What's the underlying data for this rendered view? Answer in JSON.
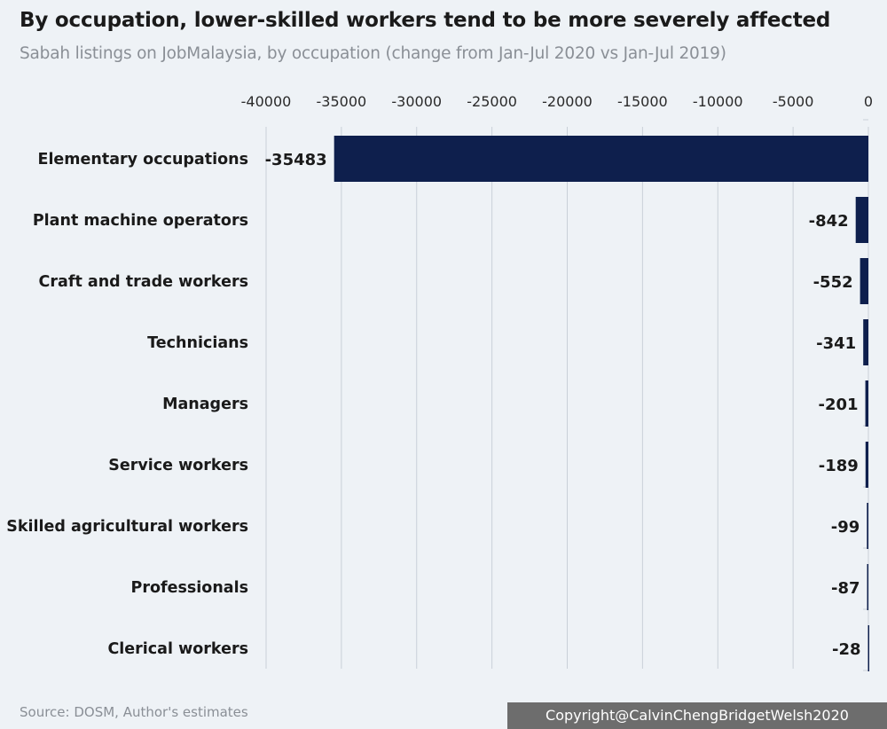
{
  "header": {
    "title": "By occupation, lower-skilled workers tend to be more severely affected",
    "subtitle": "Sabah listings on JobMalaysia, by occupation (change from Jan-Jul 2020 vs Jan-Jul 2019)"
  },
  "footer": {
    "source": "Source: DOSM, Author's estimates",
    "copyright": "Copyright@CalvinChengBridgetWelsh2020"
  },
  "colors": {
    "bar": "#0e1f4d",
    "grid": "#c9d0d8",
    "axis_text": "#2a2a2a",
    "label_text": "#1a1a1a"
  },
  "chart_data": {
    "type": "bar",
    "orientation": "horizontal",
    "categories": [
      "Elementary occupations",
      "Plant machine operators",
      "Craft and trade workers",
      "Technicians",
      "Managers",
      "Service workers",
      "Skilled agricultural workers",
      "Professionals",
      "Clerical workers"
    ],
    "values": [
      -35483,
      -842,
      -552,
      -341,
      -201,
      -189,
      -99,
      -87,
      -28
    ],
    "data_labels": [
      "-35483",
      "-842",
      "-552",
      "-341",
      "-201",
      "-189",
      "-99",
      "-87",
      "-28"
    ],
    "xlim": [
      -40000,
      0
    ],
    "xticks": [
      -40000,
      -35000,
      -30000,
      -25000,
      -20000,
      -15000,
      -10000,
      -5000,
      0
    ],
    "xtick_labels": [
      "-40000",
      "-35000",
      "-30000",
      "-25000",
      "-20000",
      "-15000",
      "-10000",
      "-5000",
      "0"
    ],
    "axis_position": "top",
    "grid": true,
    "legend": "none"
  }
}
